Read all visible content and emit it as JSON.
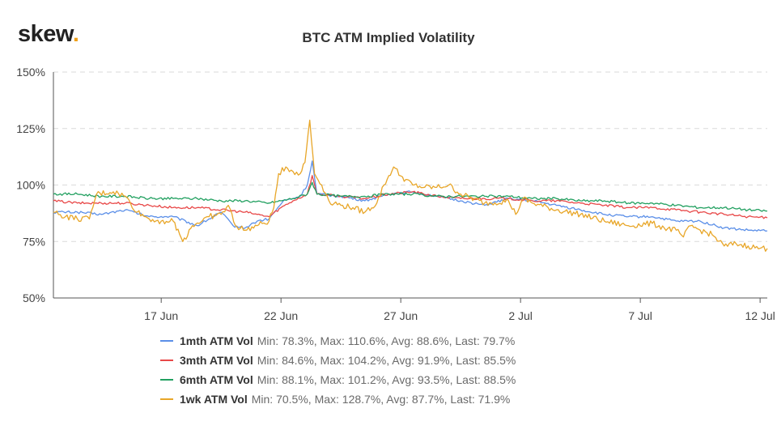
{
  "brand": {
    "name": "skew",
    "dot": "."
  },
  "chart_data": {
    "type": "line",
    "title": "BTC ATM Implied Volatility",
    "xlabel": "",
    "ylabel": "",
    "x_range_days": [
      0,
      29.8
    ],
    "x_ticks": [
      {
        "label": "17 Jun",
        "day": 4.5
      },
      {
        "label": "22 Jun",
        "day": 9.5
      },
      {
        "label": "27 Jun",
        "day": 14.5
      },
      {
        "label": "2 Jul",
        "day": 19.5
      },
      {
        "label": "7 Jul",
        "day": 24.5
      },
      {
        "label": "12 Jul",
        "day": 29.5
      }
    ],
    "ylim": [
      50,
      150
    ],
    "y_ticks": [
      {
        "label": "50%",
        "value": 50
      },
      {
        "label": "75%",
        "value": 75
      },
      {
        "label": "100%",
        "value": 100
      },
      {
        "label": "125%",
        "value": 125
      },
      {
        "label": "150%",
        "value": 150
      }
    ],
    "grid": "horizontal-dashed",
    "series": [
      {
        "name": "1mth ATM Vol",
        "stats": "Min: 78.3%, Max: 110.6%, Avg: 88.6%, Last: 79.7%",
        "color": "#5b8fe8",
        "points": [
          [
            0,
            88
          ],
          [
            1,
            88
          ],
          [
            2,
            87
          ],
          [
            3,
            89
          ],
          [
            4,
            86
          ],
          [
            5,
            86
          ],
          [
            6,
            82
          ],
          [
            7,
            88
          ],
          [
            7.5,
            82
          ],
          [
            8,
            81
          ],
          [
            8.5,
            84
          ],
          [
            9,
            85
          ],
          [
            9.3,
            89
          ],
          [
            9.6,
            93
          ],
          [
            10,
            94
          ],
          [
            10.3,
            95
          ],
          [
            10.6,
            100
          ],
          [
            10.8,
            110.6
          ],
          [
            11,
            96
          ],
          [
            12,
            95
          ],
          [
            13,
            93
          ],
          [
            14,
            96
          ],
          [
            15,
            97
          ],
          [
            16,
            95
          ],
          [
            17,
            93
          ],
          [
            18,
            91
          ],
          [
            19,
            94
          ],
          [
            20,
            93
          ],
          [
            21,
            91
          ],
          [
            22,
            89
          ],
          [
            23,
            87
          ],
          [
            24,
            86
          ],
          [
            25,
            86
          ],
          [
            26,
            84
          ],
          [
            27,
            84
          ],
          [
            28,
            81
          ],
          [
            29,
            80
          ],
          [
            29.8,
            79.7
          ]
        ]
      },
      {
        "name": "3mth ATM Vol",
        "stats": "Min: 84.6%, Max: 104.2%, Avg: 91.9%, Last: 85.5%",
        "color": "#e84848",
        "points": [
          [
            0,
            93
          ],
          [
            1,
            92
          ],
          [
            2,
            92
          ],
          [
            3,
            92
          ],
          [
            4,
            91
          ],
          [
            5,
            90
          ],
          [
            6,
            90
          ],
          [
            7,
            89
          ],
          [
            8,
            88
          ],
          [
            8.5,
            87
          ],
          [
            9,
            86
          ],
          [
            9.5,
            90
          ],
          [
            10,
            93
          ],
          [
            10.6,
            96
          ],
          [
            10.8,
            104.2
          ],
          [
            11,
            96
          ],
          [
            12,
            95
          ],
          [
            13,
            94
          ],
          [
            14,
            96
          ],
          [
            15,
            97
          ],
          [
            16,
            95
          ],
          [
            17,
            94
          ],
          [
            18,
            94
          ],
          [
            19,
            94
          ],
          [
            20,
            93
          ],
          [
            21,
            93
          ],
          [
            22,
            92
          ],
          [
            23,
            91
          ],
          [
            24,
            90
          ],
          [
            25,
            90
          ],
          [
            26,
            89
          ],
          [
            27,
            88
          ],
          [
            28,
            87
          ],
          [
            29,
            86
          ],
          [
            29.8,
            85.5
          ]
        ]
      },
      {
        "name": "6mth ATM Vol",
        "stats": "Min: 88.1%, Max: 101.2%, Avg: 93.5%, Last: 88.5%",
        "color": "#22a060",
        "points": [
          [
            0,
            96
          ],
          [
            1,
            96
          ],
          [
            2,
            95
          ],
          [
            3,
            95
          ],
          [
            4,
            94
          ],
          [
            5,
            94
          ],
          [
            6,
            94
          ],
          [
            7,
            93
          ],
          [
            8,
            93
          ],
          [
            9,
            92
          ],
          [
            9.5,
            93
          ],
          [
            10,
            94
          ],
          [
            10.6,
            96
          ],
          [
            10.8,
            101.2
          ],
          [
            11,
            96
          ],
          [
            12,
            95
          ],
          [
            13,
            95
          ],
          [
            14,
            96
          ],
          [
            15,
            96
          ],
          [
            16,
            95
          ],
          [
            17,
            95
          ],
          [
            18,
            95
          ],
          [
            19,
            95
          ],
          [
            20,
            94
          ],
          [
            21,
            94
          ],
          [
            22,
            93
          ],
          [
            23,
            93
          ],
          [
            24,
            92
          ],
          [
            25,
            92
          ],
          [
            26,
            91
          ],
          [
            27,
            90
          ],
          [
            28,
            90
          ],
          [
            29,
            89
          ],
          [
            29.8,
            88.5
          ]
        ]
      },
      {
        "name": "1wk ATM Vol",
        "stats": "Min: 70.5%, Max: 128.7%, Avg: 87.7%, Last: 71.9%",
        "color": "#e8a628",
        "points": [
          [
            0,
            88
          ],
          [
            0.5,
            86
          ],
          [
            1,
            85
          ],
          [
            1.5,
            85
          ],
          [
            1.8,
            96
          ],
          [
            2.5,
            97
          ],
          [
            3,
            95
          ],
          [
            3.5,
            88
          ],
          [
            4,
            85
          ],
          [
            4.5,
            84
          ],
          [
            5,
            84
          ],
          [
            5.4,
            75
          ],
          [
            5.8,
            82
          ],
          [
            6.5,
            86
          ],
          [
            7,
            87
          ],
          [
            7.3,
            91
          ],
          [
            7.6,
            82
          ],
          [
            8,
            80
          ],
          [
            8.5,
            82
          ],
          [
            9,
            84
          ],
          [
            9.2,
            90
          ],
          [
            9.4,
            105
          ],
          [
            9.7,
            108
          ],
          [
            10,
            106
          ],
          [
            10.3,
            105
          ],
          [
            10.5,
            110
          ],
          [
            10.7,
            128.7
          ],
          [
            10.9,
            105
          ],
          [
            11.2,
            100
          ],
          [
            11.5,
            93
          ],
          [
            12,
            91
          ],
          [
            12.5,
            90
          ],
          [
            13,
            88
          ],
          [
            13.5,
            92
          ],
          [
            13.8,
            100
          ],
          [
            14.2,
            108
          ],
          [
            14.5,
            104
          ],
          [
            15,
            100
          ],
          [
            15.5,
            99
          ],
          [
            16,
            99
          ],
          [
            16.5,
            100
          ],
          [
            17,
            96
          ],
          [
            18,
            92
          ],
          [
            19,
            93
          ],
          [
            19.3,
            87
          ],
          [
            19.6,
            94
          ],
          [
            20,
            92
          ],
          [
            21,
            89
          ],
          [
            22,
            87
          ],
          [
            23,
            84
          ],
          [
            24,
            82
          ],
          [
            25,
            83
          ],
          [
            25.5,
            81
          ],
          [
            26,
            80
          ],
          [
            26.3,
            77
          ],
          [
            26.6,
            82
          ],
          [
            27,
            80
          ],
          [
            27.5,
            78
          ],
          [
            28,
            73
          ],
          [
            28.5,
            74
          ],
          [
            29,
            73
          ],
          [
            29.5,
            72
          ],
          [
            29.8,
            71.9
          ]
        ]
      }
    ]
  }
}
